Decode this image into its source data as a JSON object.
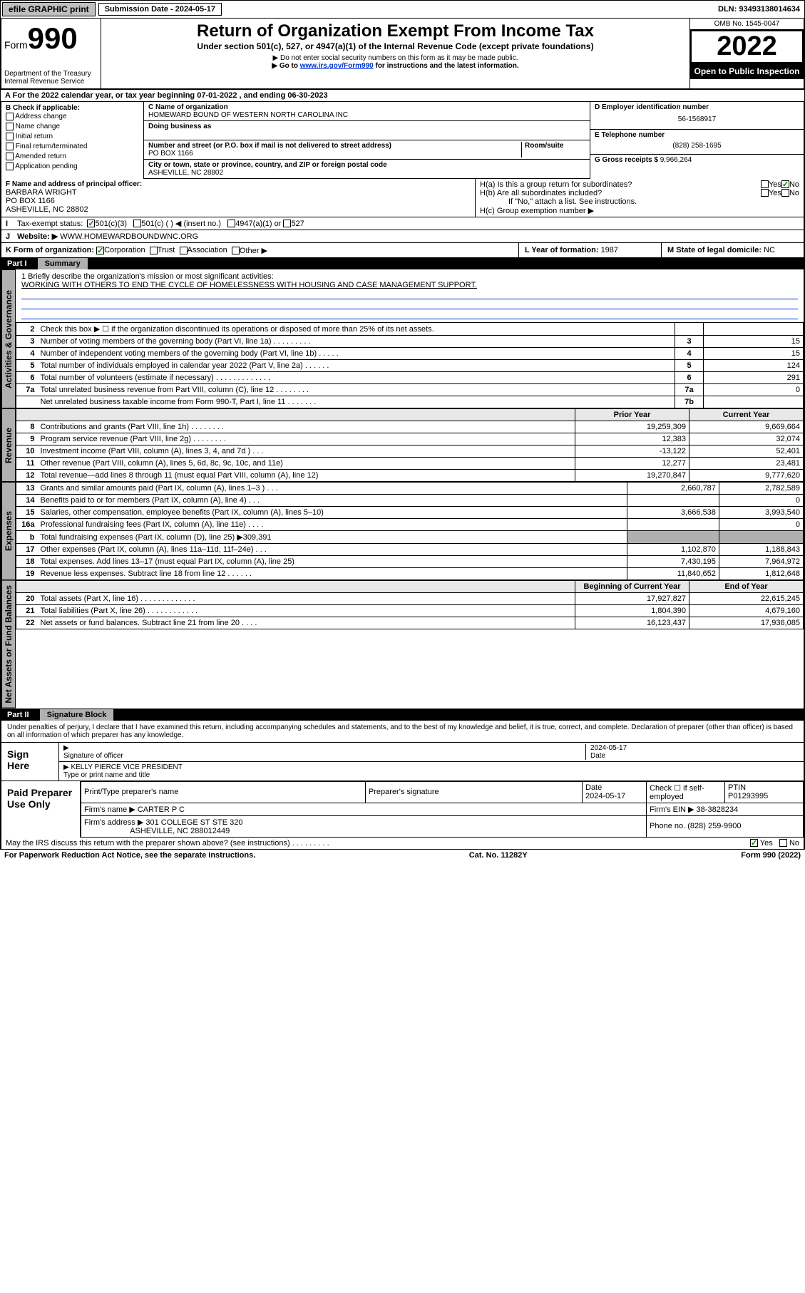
{
  "topbar": {
    "efile": "efile GRAPHIC print",
    "sub_label": "Submission Date - 2024-05-17",
    "dln_label": "DLN: 93493138014634"
  },
  "header": {
    "form_label": "Form",
    "form_num": "990",
    "dept1": "Department of the Treasury",
    "dept2": "Internal Revenue Service",
    "title": "Return of Organization Exempt From Income Tax",
    "subtitle": "Under section 501(c), 527, or 4947(a)(1) of the Internal Revenue Code (except private foundations)",
    "note1": "▶ Do not enter social security numbers on this form as it may be made public.",
    "note2_pre": "▶ Go to ",
    "note2_link": "www.irs.gov/Form990",
    "note2_post": " for instructions and the latest information.",
    "omb": "OMB No. 1545-0047",
    "year": "2022",
    "open": "Open to Public Inspection"
  },
  "row_a": "For the 2022 calendar year, or tax year beginning 07-01-2022   , and ending 06-30-2023",
  "col_b": {
    "hdr": "B Check if applicable:",
    "opts": [
      "Address change",
      "Name change",
      "Initial return",
      "Final return/terminated",
      "Amended return",
      "Application pending"
    ]
  },
  "col_c": {
    "c_label": "C Name of organization",
    "c_name": "HOMEWARD BOUND OF WESTERN NORTH CAROLINA INC",
    "dba_label": "Doing business as",
    "addr_label": "Number and street (or P.O. box if mail is not delivered to street address)",
    "room_label": "Room/suite",
    "addr": "PO BOX 1166",
    "city_label": "City or town, state or province, country, and ZIP or foreign postal code",
    "city": "ASHEVILLE, NC  28802"
  },
  "col_right": {
    "d_label": "D Employer identification number",
    "d_val": "56-1568917",
    "e_label": "E Telephone number",
    "e_val": "(828) 258-1695",
    "g_label": "G Gross receipts $ ",
    "g_val": "9,966,264"
  },
  "f_block": {
    "label": "F Name and address of principal officer:",
    "name": "BARBARA WRIGHT",
    "addr1": "PO BOX 1166",
    "addr2": "ASHEVILLE, NC  28802"
  },
  "h_block": {
    "ha": "H(a)  Is this a group return for subordinates?",
    "hb": "H(b)  Are all subordinates included?",
    "hb_note": "If \"No,\" attach a list. See instructions.",
    "hc": "H(c)  Group exemption number ▶",
    "yes": "Yes",
    "no": "No"
  },
  "line_i": {
    "label": "Tax-exempt status:",
    "o1": "501(c)(3)",
    "o2": "501(c) (   ) ◀ (insert no.)",
    "o3": "4947(a)(1) or",
    "o4": "527"
  },
  "line_j": {
    "label": "Website: ▶",
    "val": "WWW.HOMEWARDBOUNDWNC.ORG"
  },
  "line_k": {
    "label": "K Form of organization:",
    "o1": "Corporation",
    "o2": "Trust",
    "o3": "Association",
    "o4": "Other ▶"
  },
  "line_l": {
    "label": "L Year of formation: ",
    "val": "1987"
  },
  "line_m": {
    "label": "M State of legal domicile: ",
    "val": "NC"
  },
  "part1": {
    "hdr": "Part I",
    "title": "Summary"
  },
  "mission": {
    "q": "1  Briefly describe the organization's mission or most significant activities:",
    "text": "WORKING WITH OTHERS TO END THE CYCLE OF HOMELESSNESS WITH HOUSING AND CASE MANAGEMENT SUPPORT."
  },
  "governance_rows": [
    {
      "n": "2",
      "label": "Check this box ▶ ☐  if the organization discontinued its operations or disposed of more than 25% of its net assets.",
      "box": "",
      "val": ""
    },
    {
      "n": "3",
      "label": "Number of voting members of the governing body (Part VI, line 1a)  .   .   .   .   .   .   .   .   .",
      "box": "3",
      "val": "15"
    },
    {
      "n": "4",
      "label": "Number of independent voting members of the governing body (Part VI, line 1b)  .   .   .   .   .",
      "box": "4",
      "val": "15"
    },
    {
      "n": "5",
      "label": "Total number of individuals employed in calendar year 2022 (Part V, line 2a)  .   .   .   .   .   .",
      "box": "5",
      "val": "124"
    },
    {
      "n": "6",
      "label": "Total number of volunteers (estimate if necessary)  .   .   .   .   .   .   .   .   .   .   .   .   .",
      "box": "6",
      "val": "291"
    },
    {
      "n": "7a",
      "label": "Total unrelated business revenue from Part VIII, column (C), line 12  .   .   .   .   .   .   .   .",
      "box": "7a",
      "val": "0"
    },
    {
      "n": "",
      "label": "Net unrelated business taxable income from Form 990-T, Part I, line 11  .   .   .   .   .   .   .",
      "box": "7b",
      "val": ""
    }
  ],
  "two_col_hdr": {
    "prior": "Prior Year",
    "current": "Current Year"
  },
  "revenue_rows": [
    {
      "n": "8",
      "label": "Contributions and grants (Part VIII, line 1h)   .   .   .   .   .   .   .   .",
      "p": "19,259,309",
      "c": "9,669,664"
    },
    {
      "n": "9",
      "label": "Program service revenue (Part VIII, line 2g)   .   .   .   .   .   .   .   .",
      "p": "12,383",
      "c": "32,074"
    },
    {
      "n": "10",
      "label": "Investment income (Part VIII, column (A), lines 3, 4, and 7d )   .   .   .",
      "p": "-13,122",
      "c": "52,401"
    },
    {
      "n": "11",
      "label": "Other revenue (Part VIII, column (A), lines 5, 6d, 8c, 9c, 10c, and 11e)",
      "p": "12,277",
      "c": "23,481"
    },
    {
      "n": "12",
      "label": "Total revenue—add lines 8 through 11 (must equal Part VIII, column (A), line 12)",
      "p": "19,270,847",
      "c": "9,777,620"
    }
  ],
  "expense_rows": [
    {
      "n": "13",
      "label": "Grants and similar amounts paid (Part IX, column (A), lines 1–3 )   .   .   .",
      "p": "2,660,787",
      "c": "2,782,589"
    },
    {
      "n": "14",
      "label": "Benefits paid to or for members (Part IX, column (A), line 4)   .   .   .",
      "p": "",
      "c": "0"
    },
    {
      "n": "15",
      "label": "Salaries, other compensation, employee benefits (Part IX, column (A), lines 5–10)",
      "p": "3,666,538",
      "c": "3,993,540"
    },
    {
      "n": "16a",
      "label": "Professional fundraising fees (Part IX, column (A), line 11e)   .   .   .   .",
      "p": "",
      "c": "0"
    },
    {
      "n": "b",
      "label": "Total fundraising expenses (Part IX, column (D), line 25) ▶309,391",
      "p": "—shade—",
      "c": "—shade—"
    },
    {
      "n": "17",
      "label": "Other expenses (Part IX, column (A), lines 11a–11d, 11f–24e)   .   .   .",
      "p": "1,102,870",
      "c": "1,188,843"
    },
    {
      "n": "18",
      "label": "Total expenses. Add lines 13–17 (must equal Part IX, column (A), line 25)",
      "p": "7,430,195",
      "c": "7,964,972"
    },
    {
      "n": "19",
      "label": "Revenue less expenses. Subtract line 18 from line 12  .   .   .   .   .   .",
      "p": "11,840,652",
      "c": "1,812,648"
    }
  ],
  "net_hdr": {
    "beg": "Beginning of Current Year",
    "end": "End of Year"
  },
  "net_rows": [
    {
      "n": "20",
      "label": "Total assets (Part X, line 16)  .   .   .   .   .   .   .   .   .   .   .   .   .",
      "p": "17,927,827",
      "c": "22,615,245"
    },
    {
      "n": "21",
      "label": "Total liabilities (Part X, line 26)  .   .   .   .   .   .   .   .   .   .   .   .",
      "p": "1,804,390",
      "c": "4,679,160"
    },
    {
      "n": "22",
      "label": "Net assets or fund balances. Subtract line 21 from line 20   .   .   .   .",
      "p": "16,123,437",
      "c": "17,936,085"
    }
  ],
  "side_tabs": {
    "gov": "Activities & Governance",
    "rev": "Revenue",
    "exp": "Expenses",
    "net": "Net Assets or Fund Balances"
  },
  "part2": {
    "hdr": "Part II",
    "title": "Signature Block"
  },
  "penalties": "Under penalties of perjury, I declare that I have examined this return, including accompanying schedules and statements, and to the best of my knowledge and belief, it is true, correct, and complete. Declaration of preparer (other than officer) is based on all information of which preparer has any knowledge.",
  "sign": {
    "here": "Sign Here",
    "sig_label": "Signature of officer",
    "date_label": "Date",
    "date_val": "2024-05-17",
    "name": "KELLY PIERCE  VICE PRESIDENT",
    "name_label": "Type or print name and title"
  },
  "preparer": {
    "title": "Paid Preparer Use Only",
    "h1": "Print/Type preparer's name",
    "h2": "Preparer's signature",
    "h3": "Date",
    "date": "2024-05-17",
    "h4": "Check ☐ if self-employed",
    "h5": "PTIN",
    "ptin": "P01293995",
    "firm_label": "Firm's name   ▶",
    "firm": "CARTER P C",
    "ein_label": "Firm's EIN ▶",
    "ein": "38-3828234",
    "addr_label": "Firm's address ▶",
    "addr1": "301 COLLEGE ST STE 320",
    "addr2": "ASHEVILLE, NC  288012449",
    "phone_label": "Phone no. ",
    "phone": "(828) 259-9900"
  },
  "discuss": {
    "q": "May the IRS discuss this return with the preparer shown above? (see instructions)   .   .   .   .   .   .   .   .   .",
    "yes": "Yes",
    "no": "No"
  },
  "footer": {
    "left": "For Paperwork Reduction Act Notice, see the separate instructions.",
    "mid": "Cat. No. 11282Y",
    "right": "Form 990 (2022)"
  }
}
